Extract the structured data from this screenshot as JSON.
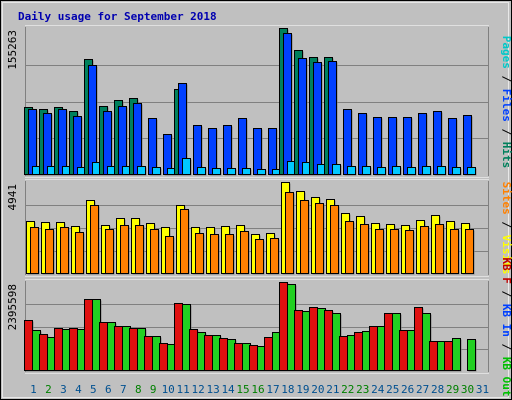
{
  "chart_data": {
    "type": "bar",
    "title": "Daily usage for September 2018",
    "categories": [
      "1",
      "2",
      "3",
      "4",
      "5",
      "6",
      "7",
      "8",
      "9",
      "10",
      "11",
      "12",
      "13",
      "14",
      "15",
      "16",
      "17",
      "18",
      "19",
      "20",
      "21",
      "22",
      "23",
      "24",
      "25",
      "26",
      "27",
      "28",
      "29",
      "30",
      "31"
    ],
    "weekend_days": [
      2,
      8,
      9,
      15,
      16,
      22,
      23,
      29,
      30
    ],
    "panels": [
      {
        "id": "hits-files-pages",
        "ymax_label": "155263",
        "ymax": 155263,
        "legend": [
          {
            "text": "Pages",
            "color": "#00c8c8"
          },
          {
            "text": " / ",
            "color": "#000000"
          },
          {
            "text": "Files",
            "color": "#0040ff"
          },
          {
            "text": " / ",
            "color": "#000000"
          },
          {
            "text": "Hits",
            "color": "#00805c"
          }
        ],
        "series": [
          {
            "name": "Hits",
            "color": "#00805c",
            "values": [
              72000,
              70000,
              72000,
              68000,
              122000,
              73000,
              79000,
              81000,
              0,
              0,
              91000,
              0,
              0,
              0,
              0,
              0,
              0,
              155263,
              132000,
              125000,
              125000,
              0,
              0,
              0,
              0,
              0,
              0,
              0,
              0,
              0,
              0
            ]
          },
          {
            "name": "Files",
            "color": "#0040ff",
            "values": [
              70000,
              66000,
              70000,
              62000,
              116000,
              68000,
              73000,
              76000,
              60000,
              43000,
              97000,
              53000,
              50000,
              53000,
              60000,
              50000,
              50000,
              150000,
              124000,
              119000,
              120000,
              70000,
              66000,
              61000,
              61000,
              61000,
              66000,
              68000,
              60000,
              63000,
              0
            ]
          },
          {
            "name": "Pages",
            "color": "#00c8ff",
            "values": [
              9000,
              9000,
              9000,
              8000,
              14000,
              9000,
              9000,
              9000,
              8000,
              7000,
              18000,
              8000,
              7000,
              7000,
              7000,
              6000,
              6000,
              15000,
              14000,
              12000,
              12000,
              10000,
              9000,
              8000,
              9000,
              8000,
              9000,
              10000,
              8000,
              8000,
              0
            ]
          }
        ]
      },
      {
        "id": "visits-sites",
        "ymax_label": "4941",
        "ymax": 4941,
        "legend": [
          {
            "text": "Sites",
            "color": "#ff8000"
          },
          {
            "text": " / ",
            "color": "#000000"
          },
          {
            "text": "Visits",
            "color": "#ffff00"
          }
        ],
        "series": [
          {
            "name": "Visits",
            "color": "#ffff00",
            "values": [
              2850,
              2800,
              2800,
              2600,
              4000,
              2650,
              3000,
              3000,
              2750,
              2500,
              3700,
              2550,
              2500,
              2600,
              2650,
              2150,
              2200,
              4941,
              4450,
              4150,
              4050,
              3250,
              3100,
              2750,
              2700,
              2650,
              2900,
              3150,
              2850,
              2750,
              0
            ]
          },
          {
            "name": "Sites",
            "color": "#ff8000",
            "values": [
              2500,
              2400,
              2500,
              2250,
              3700,
              2400,
              2650,
              2650,
              2400,
              2050,
              3500,
              2200,
              2150,
              2150,
              2300,
              1900,
              1950,
              4400,
              4000,
              3800,
              3700,
              2850,
              2700,
              2400,
              2400,
              2350,
              2600,
              2700,
              2400,
              2400,
              0
            ]
          }
        ]
      },
      {
        "id": "kb",
        "ymax_label": "2395598",
        "ymax": 2395598,
        "legend": [
          {
            "text": "KB F",
            "color": "#c00000"
          },
          {
            "text": " / ",
            "color": "#000000"
          },
          {
            "text": "KB In",
            "color": "#0040ff"
          },
          {
            "text": " / ",
            "color": "#000000"
          },
          {
            "text": "KB Out",
            "color": "#00c000"
          }
        ],
        "series": [
          {
            "name": "KB F",
            "color": "#e01010",
            "values": [
              1370000,
              1000000,
              1170000,
              1170000,
              1950000,
              1330000,
              1210000,
              1170000,
              950000,
              760000,
              1830000,
              1120000,
              960000,
              880000,
              760000,
              690000,
              910000,
              2395598,
              1650000,
              1730000,
              1640000,
              950000,
              1060000,
              1210000,
              1550000,
              1100000,
              1720000,
              800000,
              820000,
              0,
              0
            ]
          },
          {
            "name": "KB In",
            "color": "#0040ff",
            "values": [
              0,
              0,
              0,
              0,
              0,
              0,
              0,
              0,
              0,
              0,
              0,
              0,
              0,
              0,
              0,
              0,
              0,
              0,
              0,
              0,
              0,
              0,
              0,
              0,
              0,
              0,
              0,
              0,
              0,
              0,
              0
            ]
          },
          {
            "name": "KB Out",
            "color": "#22d022",
            "values": [
              1100000,
              920000,
              1140000,
              1120000,
              1930000,
              1330000,
              1200000,
              1150000,
              940000,
              740000,
              1800000,
              1050000,
              960000,
              870000,
              760000,
              660000,
              1040000,
              2330000,
              1620000,
              1700000,
              1560000,
              970000,
              1080000,
              1200000,
              1550000,
              1100000,
              1550000,
              800000,
              900000,
              850000,
              0
            ]
          }
        ]
      }
    ],
    "colors": {
      "background": "#c0c0c0",
      "frame": "#e8e8e8",
      "title": "#0000b0",
      "weekday_label": "#005090",
      "weekend_label": "#008000",
      "grid": "#808080"
    }
  }
}
